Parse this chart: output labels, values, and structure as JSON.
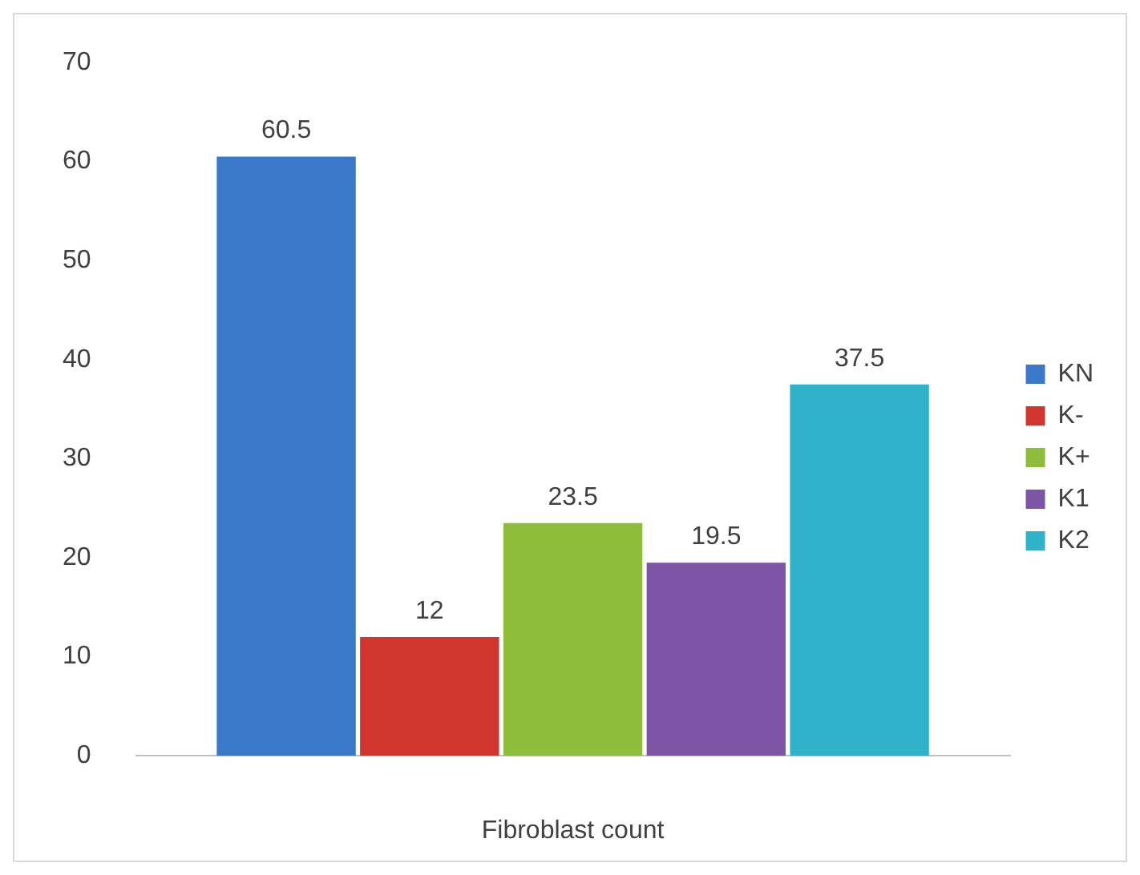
{
  "chart_data": {
    "type": "bar",
    "xlabel": "Fibroblast count",
    "categories": [
      null
    ],
    "series": [
      {
        "name": "KN",
        "color": "#3a78c9",
        "values": [
          60.5
        ]
      },
      {
        "name": "K-",
        "color": "#d0352e",
        "values": [
          12
        ]
      },
      {
        "name": "K+",
        "color": "#8dbd3a",
        "values": [
          23.5
        ]
      },
      {
        "name": "K1",
        "color": "#7c55a6",
        "values": [
          19.5
        ]
      },
      {
        "name": "K2",
        "color": "#30b2cb",
        "values": [
          37.5
        ]
      }
    ],
    "ylim": [
      0,
      70
    ],
    "yticks": [
      0,
      10,
      20,
      30,
      40,
      50,
      60,
      70
    ],
    "grid": false,
    "legend": "right",
    "data_labels": true
  }
}
